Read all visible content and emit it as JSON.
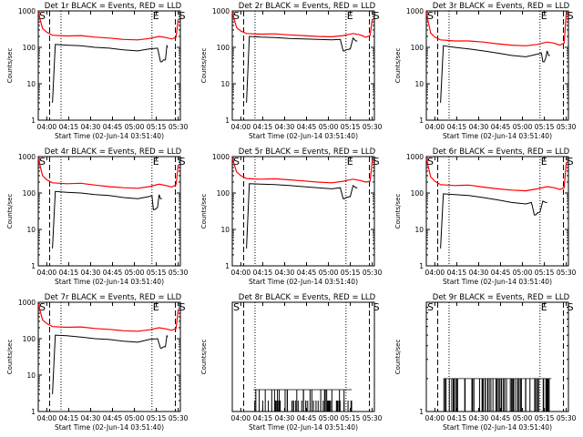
{
  "layout": {
    "rows": 3,
    "cols": 3
  },
  "colors": {
    "events": "#000000",
    "lld": "#ff0000",
    "axes": "#000000"
  },
  "chart_data": [
    {
      "type": "line",
      "title": "Det 1r BLACK = Events, RED = LLD",
      "xlabel": "Start Time (02-Jun-14 03:51:40)",
      "ylabel": "Counts/sec",
      "xticks": [
        "04:00",
        "04:15",
        "04:30",
        "04:45",
        "05:00",
        "05:15",
        "05:30"
      ],
      "ylog": true,
      "ylim": [
        1,
        1000
      ],
      "yticks": [
        "1",
        "10",
        "100",
        "1000"
      ],
      "markers": [
        {
          "label": "S",
          "pos": 0.0
        },
        {
          "label": "E",
          "pos": 0.8
        },
        {
          "label": "S",
          "pos": 0.985
        }
      ],
      "vlines_dashed": [
        0.08,
        0.965
      ],
      "vlines_dotted": [
        0.16,
        0.8
      ],
      "lld": {
        "x": [
          0.0,
          0.03,
          0.06,
          0.1,
          0.2,
          0.3,
          0.4,
          0.5,
          0.6,
          0.7,
          0.78,
          0.85,
          0.9,
          0.94,
          0.97,
          0.985
        ],
        "y": [
          900,
          330,
          260,
          215,
          205,
          210,
          190,
          180,
          165,
          160,
          175,
          200,
          185,
          170,
          190,
          600
        ]
      },
      "events": [
        {
          "x": [
            0.1,
            0.12,
            0.2,
            0.3,
            0.4,
            0.5,
            0.6,
            0.7,
            0.78,
            0.84,
            0.86,
            0.87,
            0.88,
            0.895,
            0.905,
            0.91
          ],
          "y": [
            3,
            120,
            115,
            110,
            100,
            95,
            85,
            80,
            90,
            95,
            40,
            40,
            45,
            45,
            110,
            100
          ]
        }
      ]
    },
    {
      "type": "line",
      "title": "Det 2r BLACK = Events, RED = LLD",
      "xlabel": "Start Time (02-Jun-14 03:51:40)",
      "ylabel": "Counts/sec",
      "xticks": [
        "04:00",
        "04:15",
        "04:30",
        "04:45",
        "05:00",
        "05:15",
        "05:30"
      ],
      "ylog": true,
      "ylim": [
        1,
        1000
      ],
      "yticks": [
        "1",
        "10",
        "100",
        "1000"
      ],
      "markers": [
        {
          "label": "S",
          "pos": 0.0
        },
        {
          "label": "E",
          "pos": 0.8
        },
        {
          "label": "S",
          "pos": 0.985
        }
      ],
      "vlines_dashed": [
        0.08,
        0.965
      ],
      "vlines_dotted": [
        0.16,
        0.8
      ],
      "lld": {
        "x": [
          0.0,
          0.03,
          0.06,
          0.1,
          0.2,
          0.3,
          0.4,
          0.5,
          0.6,
          0.7,
          0.78,
          0.85,
          0.9,
          0.94,
          0.97,
          0.985
        ],
        "y": [
          900,
          350,
          280,
          240,
          230,
          235,
          220,
          210,
          200,
          195,
          210,
          240,
          220,
          190,
          210,
          600
        ]
      },
      "events": [
        {
          "x": [
            0.1,
            0.12,
            0.2,
            0.3,
            0.4,
            0.5,
            0.6,
            0.7,
            0.76,
            0.78,
            0.79,
            0.8,
            0.83,
            0.85,
            0.87,
            0.88
          ],
          "y": [
            3,
            200,
            190,
            185,
            175,
            170,
            165,
            160,
            165,
            80,
            80,
            85,
            90,
            180,
            150,
            150
          ]
        }
      ]
    },
    {
      "type": "line",
      "title": "Det 3r BLACK = Events, RED = LLD",
      "xlabel": "Start Time (02-Jun-14 03:51:40)",
      "ylabel": "Counts/sec",
      "xticks": [
        "04:00",
        "04:15",
        "04:30",
        "04:45",
        "05:00",
        "05:15",
        "05:30"
      ],
      "ylog": true,
      "ylim": [
        1,
        1000
      ],
      "yticks": [
        "1",
        "10",
        "100",
        "1000"
      ],
      "markers": [
        {
          "label": "S",
          "pos": 0.0
        },
        {
          "label": "E",
          "pos": 0.8
        },
        {
          "label": "S",
          "pos": 0.985
        }
      ],
      "vlines_dashed": [
        0.08,
        0.965
      ],
      "vlines_dotted": [
        0.16,
        0.8
      ],
      "lld": {
        "x": [
          0.0,
          0.03,
          0.06,
          0.1,
          0.2,
          0.3,
          0.4,
          0.5,
          0.6,
          0.7,
          0.78,
          0.85,
          0.9,
          0.94,
          0.97,
          0.985
        ],
        "y": [
          900,
          250,
          190,
          160,
          150,
          150,
          140,
          125,
          115,
          110,
          120,
          140,
          130,
          115,
          130,
          900
        ]
      },
      "events": [
        {
          "x": [
            0.1,
            0.12,
            0.2,
            0.3,
            0.4,
            0.5,
            0.6,
            0.7,
            0.78,
            0.81,
            0.82,
            0.83,
            0.84,
            0.85,
            0.86,
            0.87
          ],
          "y": [
            3,
            110,
            100,
            90,
            80,
            70,
            60,
            55,
            65,
            70,
            40,
            40,
            50,
            80,
            60,
            60
          ]
        }
      ]
    },
    {
      "type": "line",
      "title": "Det 4r BLACK = Events, RED = LLD",
      "xlabel": "Start Time (02-Jun-14 03:51:40)",
      "ylabel": "Counts/sec",
      "xticks": [
        "04:00",
        "04:15",
        "04:30",
        "04:45",
        "05:00",
        "05:15",
        "05:30"
      ],
      "ylog": true,
      "ylim": [
        1,
        1000
      ],
      "yticks": [
        "1",
        "10",
        "100",
        "1000"
      ],
      "markers": [
        {
          "label": "S",
          "pos": 0.0
        },
        {
          "label": "E",
          "pos": 0.8
        },
        {
          "label": "S",
          "pos": 0.985
        }
      ],
      "vlines_dashed": [
        0.08,
        0.965
      ],
      "vlines_dotted": [
        0.16,
        0.8
      ],
      "lld": {
        "x": [
          0.0,
          0.03,
          0.06,
          0.1,
          0.2,
          0.3,
          0.4,
          0.5,
          0.6,
          0.7,
          0.78,
          0.85,
          0.9,
          0.94,
          0.97,
          0.985
        ],
        "y": [
          900,
          300,
          230,
          190,
          180,
          185,
          165,
          150,
          140,
          135,
          150,
          175,
          160,
          145,
          170,
          600
        ]
      },
      "events": [
        {
          "x": [
            0.1,
            0.12,
            0.2,
            0.3,
            0.4,
            0.5,
            0.6,
            0.7,
            0.78,
            0.8,
            0.81,
            0.82,
            0.84,
            0.85,
            0.86,
            0.87
          ],
          "y": [
            3,
            110,
            105,
            100,
            90,
            85,
            75,
            70,
            80,
            85,
            35,
            35,
            40,
            90,
            70,
            70
          ]
        }
      ]
    },
    {
      "type": "line",
      "title": "Det 5r BLACK = Events, RED = LLD",
      "xlabel": "Start Time (02-Jun-14 03:51:40)",
      "ylabel": "Counts/sec",
      "xticks": [
        "04:00",
        "04:15",
        "04:30",
        "04:45",
        "05:00",
        "05:15",
        "05:30"
      ],
      "ylog": true,
      "ylim": [
        1,
        1000
      ],
      "yticks": [
        "1",
        "10",
        "100",
        "1000"
      ],
      "markers": [
        {
          "label": "S",
          "pos": 0.0
        },
        {
          "label": "E",
          "pos": 0.8
        },
        {
          "label": "S",
          "pos": 0.985
        }
      ],
      "vlines_dashed": [
        0.08,
        0.965
      ],
      "vlines_dotted": [
        0.16,
        0.8
      ],
      "lld": {
        "x": [
          0.0,
          0.03,
          0.06,
          0.1,
          0.2,
          0.3,
          0.4,
          0.5,
          0.6,
          0.7,
          0.78,
          0.85,
          0.9,
          0.94,
          0.97,
          0.985
        ],
        "y": [
          900,
          380,
          300,
          250,
          240,
          245,
          230,
          215,
          200,
          190,
          210,
          240,
          220,
          200,
          210,
          800
        ]
      },
      "events": [
        {
          "x": [
            0.1,
            0.12,
            0.2,
            0.3,
            0.4,
            0.5,
            0.6,
            0.7,
            0.76,
            0.78,
            0.79,
            0.8,
            0.83,
            0.85,
            0.87,
            0.88
          ],
          "y": [
            3,
            180,
            175,
            170,
            160,
            150,
            140,
            130,
            140,
            70,
            70,
            75,
            80,
            160,
            140,
            140
          ]
        }
      ]
    },
    {
      "type": "line",
      "title": "Det 6r BLACK = Events, RED = LLD",
      "xlabel": "Start Time (02-Jun-14 03:51:40)",
      "ylabel": "Counts/sec",
      "xticks": [
        "04:00",
        "04:15",
        "04:30",
        "04:45",
        "05:00",
        "05:15",
        "05:30"
      ],
      "ylog": true,
      "ylim": [
        1,
        1000
      ],
      "yticks": [
        "1",
        "10",
        "100",
        "1000"
      ],
      "markers": [
        {
          "label": "S",
          "pos": 0.0
        },
        {
          "label": "E",
          "pos": 0.8
        },
        {
          "label": "S",
          "pos": 0.985
        }
      ],
      "vlines_dashed": [
        0.08,
        0.965
      ],
      "vlines_dotted": [
        0.16,
        0.8
      ],
      "lld": {
        "x": [
          0.0,
          0.03,
          0.06,
          0.1,
          0.2,
          0.3,
          0.4,
          0.5,
          0.6,
          0.7,
          0.78,
          0.85,
          0.9,
          0.94,
          0.97,
          0.985
        ],
        "y": [
          900,
          280,
          210,
          170,
          160,
          165,
          145,
          130,
          120,
          115,
          130,
          150,
          140,
          125,
          140,
          700
        ]
      },
      "events": [
        {
          "x": [
            0.1,
            0.12,
            0.2,
            0.3,
            0.4,
            0.5,
            0.6,
            0.7,
            0.74,
            0.76,
            0.77,
            0.78,
            0.8,
            0.82,
            0.84,
            0.85
          ],
          "y": [
            3,
            95,
            90,
            85,
            75,
            65,
            55,
            50,
            55,
            25,
            25,
            28,
            30,
            60,
            55,
            55
          ]
        }
      ]
    },
    {
      "type": "line",
      "title": "Det 7r BLACK = Events, RED = LLD",
      "xlabel": "Start Time (02-Jun-14 03:51:40)",
      "ylabel": "Counts/sec",
      "xticks": [
        "04:00",
        "04:15",
        "04:30",
        "04:45",
        "05:00",
        "05:15",
        "05:30"
      ],
      "ylog": true,
      "ylim": [
        1,
        1000
      ],
      "yticks": [
        "1",
        "10",
        "100",
        "1000"
      ],
      "markers": [
        {
          "label": "S",
          "pos": 0.0
        },
        {
          "label": "E",
          "pos": 0.8
        },
        {
          "label": "S",
          "pos": 0.985
        }
      ],
      "vlines_dashed": [
        0.08,
        0.965
      ],
      "vlines_dotted": [
        0.16,
        0.8
      ],
      "lld": {
        "x": [
          0.0,
          0.03,
          0.06,
          0.1,
          0.2,
          0.3,
          0.4,
          0.5,
          0.6,
          0.7,
          0.78,
          0.85,
          0.9,
          0.94,
          0.97,
          0.985
        ],
        "y": [
          900,
          330,
          260,
          215,
          205,
          210,
          190,
          180,
          165,
          160,
          175,
          200,
          185,
          170,
          190,
          650
        ]
      },
      "events": [
        {
          "x": [
            0.1,
            0.12,
            0.2,
            0.3,
            0.4,
            0.5,
            0.6,
            0.7,
            0.78,
            0.84,
            0.86,
            0.87,
            0.88,
            0.895,
            0.905,
            0.91
          ],
          "y": [
            3,
            125,
            120,
            110,
            100,
            95,
            85,
            80,
            95,
            100,
            55,
            55,
            60,
            60,
            120,
            110
          ]
        }
      ]
    },
    {
      "type": "line",
      "title": "Det 8r BLACK = Events, RED = LLD",
      "xlabel": "Start Time (02-Jun-14 03:51:40)",
      "ylabel": "Counts/sec",
      "xticks": [
        "04:00",
        "04:15",
        "04:30",
        "04:45",
        "05:00",
        "05:15",
        "05:30"
      ],
      "ylog": false,
      "ylim": [
        0,
        10
      ],
      "yticks": [],
      "markers": [
        {
          "label": "S",
          "pos": 0.0
        },
        {
          "label": "S",
          "pos": 0.985
        }
      ],
      "vlines_dashed": [
        0.08,
        0.965
      ],
      "vlines_dotted": [
        0.16,
        0.8
      ],
      "spikes": {
        "baseline": 0,
        "levels": [
          1.0,
          2.0
        ],
        "x_start": 0.15,
        "x_end": 0.84,
        "count": 60
      }
    },
    {
      "type": "line",
      "title": "Det 9r BLACK = Events, RED = LLD",
      "xlabel": "Start Time (02-Jun-14 03:51:40)",
      "ylabel": "Counts/sec",
      "xticks": [
        "04:00",
        "04:15",
        "04:30",
        "04:45",
        "05:00",
        "05:15",
        "05:30"
      ],
      "ylog": true,
      "ylim": [
        1,
        10
      ],
      "yticks": [
        "1"
      ],
      "markers": [
        {
          "label": "S",
          "pos": 0.0
        },
        {
          "label": "E",
          "pos": 0.8
        },
        {
          "label": "S",
          "pos": 0.985
        }
      ],
      "vlines_dashed": [
        0.08,
        0.965
      ],
      "vlines_dotted": [
        0.16,
        0.8
      ],
      "spikes": {
        "baseline": 1,
        "levels": [
          2.0
        ],
        "x_start": 0.12,
        "x_end": 0.88,
        "count": 70
      }
    }
  ]
}
